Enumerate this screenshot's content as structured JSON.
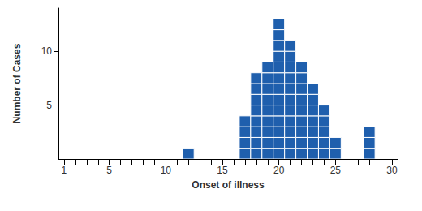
{
  "chart_data": {
    "type": "bar",
    "x_label": "Onset of illness",
    "y_label": "Number of Cases",
    "categories": [
      "1",
      null,
      null,
      null,
      "5",
      null,
      null,
      null,
      null,
      "10",
      null,
      null,
      null,
      null,
      "15",
      null,
      null,
      null,
      null,
      "20",
      null,
      null,
      null,
      null,
      "25",
      null,
      null,
      null,
      null,
      "30"
    ],
    "values": [
      0,
      0,
      0,
      0,
      0,
      0,
      0,
      0,
      0,
      0,
      0,
      1,
      0,
      0,
      0,
      0,
      4,
      8,
      9,
      13,
      11,
      9,
      7,
      5,
      2,
      0,
      0,
      3,
      0,
      0
    ],
    "color": "#1f5fad",
    "ylim": [
      0,
      14
    ],
    "yticks": [
      5,
      10
    ],
    "grid": false
  }
}
